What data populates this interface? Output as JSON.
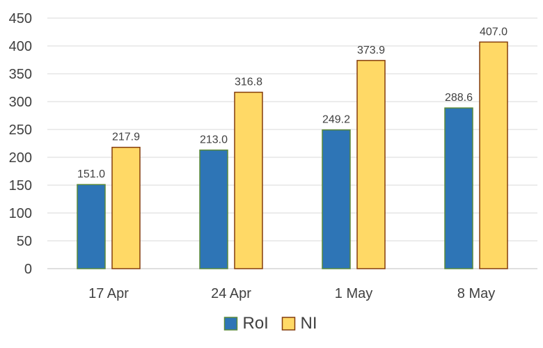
{
  "chart_data": {
    "type": "bar",
    "title": "",
    "xlabel": "",
    "ylabel": "",
    "categories": [
      "17 Apr",
      "24 Apr",
      "1 May",
      "8 May"
    ],
    "series": [
      {
        "name": "RoI",
        "values": [
          151.0,
          213.0,
          249.2,
          288.6
        ],
        "color": "#2e75b6",
        "border": "#5a8a3a"
      },
      {
        "name": "NI",
        "values": [
          217.9,
          316.8,
          373.9,
          407.0
        ],
        "color": "#ffd966",
        "border": "#843c0c"
      }
    ],
    "ylim": [
      0,
      450
    ],
    "yticks": [
      0,
      50,
      100,
      150,
      200,
      250,
      300,
      350,
      400,
      450
    ],
    "grid": true,
    "legend": "bottom",
    "data_labels": true
  }
}
